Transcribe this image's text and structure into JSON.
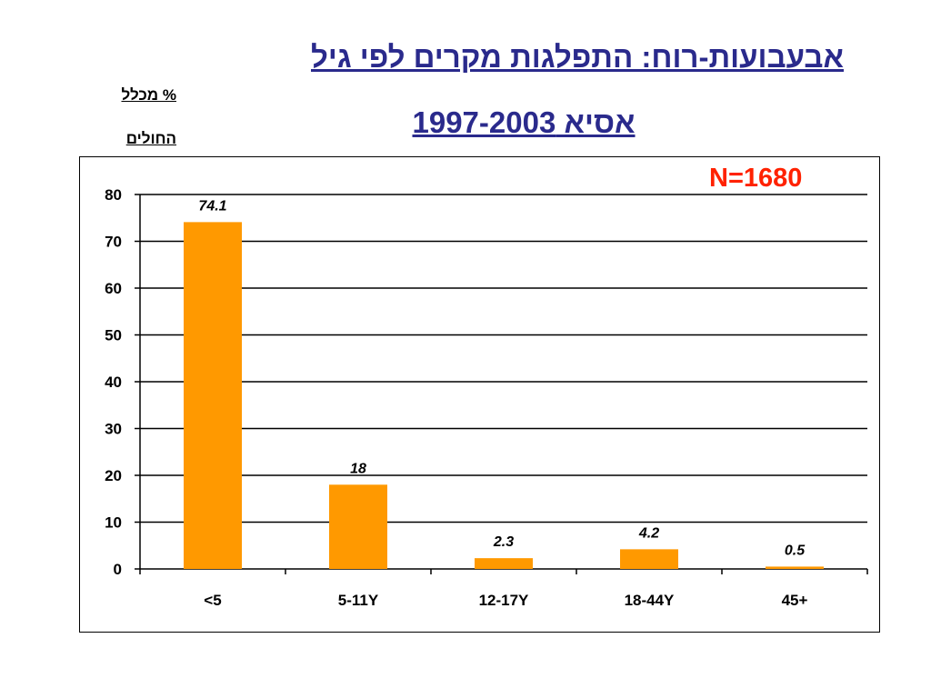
{
  "title": {
    "line1": "אבעבועות-רוח: התפלגות מקרים לפי גיל",
    "line2": "אסיא 1997-2003"
  },
  "ylabel": {
    "line1": "% מכלל",
    "line2": "החולים"
  },
  "annotation": "N=1680",
  "colors": {
    "bar": "#ff9900",
    "title": "#2a2a8c",
    "annotation": "#ff2200",
    "gridline": "#000000"
  },
  "chart_data": {
    "type": "bar",
    "categories": [
      "<5",
      "5-11Y",
      "12-17Y",
      "18-44Y",
      "45+"
    ],
    "values": [
      74.1,
      18,
      2.3,
      4.2,
      0.5
    ],
    "data_labels": [
      "74.1",
      "18",
      "2.3",
      "4.2",
      "0.5"
    ],
    "ylim": [
      0,
      80
    ],
    "yticks": [
      0,
      10,
      20,
      30,
      40,
      50,
      60,
      70,
      80
    ],
    "grid": true,
    "legend": "none"
  }
}
